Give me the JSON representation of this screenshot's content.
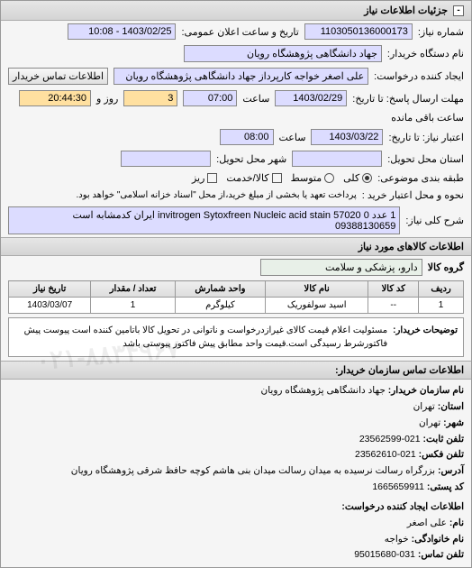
{
  "header": {
    "title": "جزئیات اطلاعات نیاز"
  },
  "top": {
    "request_no_label": "شماره نیاز:",
    "request_no": "1103050136000173",
    "announce_label": "تاریخ و ساعت اعلان عمومی:",
    "announce_value": "1403/02/25 - 10:08",
    "buyer_label": "نام دستگاه خریدار:",
    "buyer": "جهاد دانشگاهی پژوهشگاه رویان",
    "creator_label": "ایجاد کننده درخواست:",
    "creator": "علی اصغر خواجه کارپرداز جهاد دانشگاهی پژوهشگاه رویان",
    "contact_btn": "اطلاعات تماس خریدار",
    "deadline_reply_label": "مهلت ارسال پاسخ: تا تاریخ:",
    "deadline_reply_date": "1403/02/29",
    "time_label": "ساعت",
    "deadline_reply_time": "07:00",
    "remain_days": "3",
    "remain_days_label": "روز و",
    "remain_time": "20:44:30",
    "remain_suffix": "ساعت باقی مانده",
    "validity_label": "اعتبار نیاز: تا تاریخ:",
    "validity_date": "1403/03/22",
    "validity_time": "08:00",
    "province_label": "استان محل تحویل:",
    "city_label": "شهر محل تحویل:",
    "class_label": "طبقه بندی موضوعی:",
    "radio_all": "کلی",
    "radio_mid": "متوسط",
    "radio_partial": "کالا/خدمت",
    "radio_detail": "ریز",
    "purchase_note_label": "نحوه و محل اعتبار خرید :",
    "purchase_note": "پرداخت تعهد یا بخشی از مبلغ خرید،از محل \"اسناد خزانه اسلامی\" خواهد بود.",
    "desc_label": "شرح کلی نیاز:",
    "desc": "1 عدد 0 57020 invitrogen Sytoxfreen Nucleic acid stain ایران کدمشابه است 09388130659"
  },
  "goods": {
    "title": "اطلاعات کالاهای مورد نیاز",
    "group_label": "گروه کالا",
    "group_value": "دارو، پزشکی و سلامت",
    "table": {
      "cols": [
        "ردیف",
        "کد کالا",
        "نام کالا",
        "واحد شمارش",
        "تعداد / مقدار",
        "تاریخ نیاز"
      ],
      "rows": [
        [
          "1",
          "--",
          "اسید سولفوریک",
          "کیلوگرم",
          "1",
          "1403/03/07"
        ]
      ]
    }
  },
  "note": {
    "label": "توضیحات خریدار:",
    "text": "مسئولیت اعلام قیمت کالای غیرازدرخواست و ناتوانی در تحویل کالا باتامین کننده است پیوست پیش فاکتورشرط رسیدگی است.قیمت واحد مطابق پیش فاکتور پیوستی باشد"
  },
  "wm1": "۰۲۱-۸۸۳۴۹۶۷",
  "contact": {
    "title": "اطلاعات تماس سازمان خریدار:",
    "org_label": "نام سازمان خریدار:",
    "org": "جهاد دانشگاهی پژوهشگاه رویان",
    "prov_label": "استان:",
    "prov": "تهران",
    "city_label": "شهر:",
    "city": "تهران",
    "tel_label": "تلفن ثابت:",
    "tel": "021-23562599",
    "fax_label": "تلفن فکس:",
    "fax": "021-23562610",
    "addr_label": "آدرس:",
    "addr": "بزرگراه رسالت نرسیده به میدان رسالت میدان بنی هاشم کوچه حافظ شرقی پژوهشگاه رویان",
    "post_label": "کد پستی:",
    "post": "1665659911",
    "req_contact_title": "اطلاعات ایجاد کننده درخواست:",
    "name_label": "نام:",
    "name": "علی اصغر",
    "family_label": "نام خانوادگی:",
    "family": "خواجه",
    "ctel_label": "تلفن تماس:",
    "ctel": "031-95015680"
  }
}
